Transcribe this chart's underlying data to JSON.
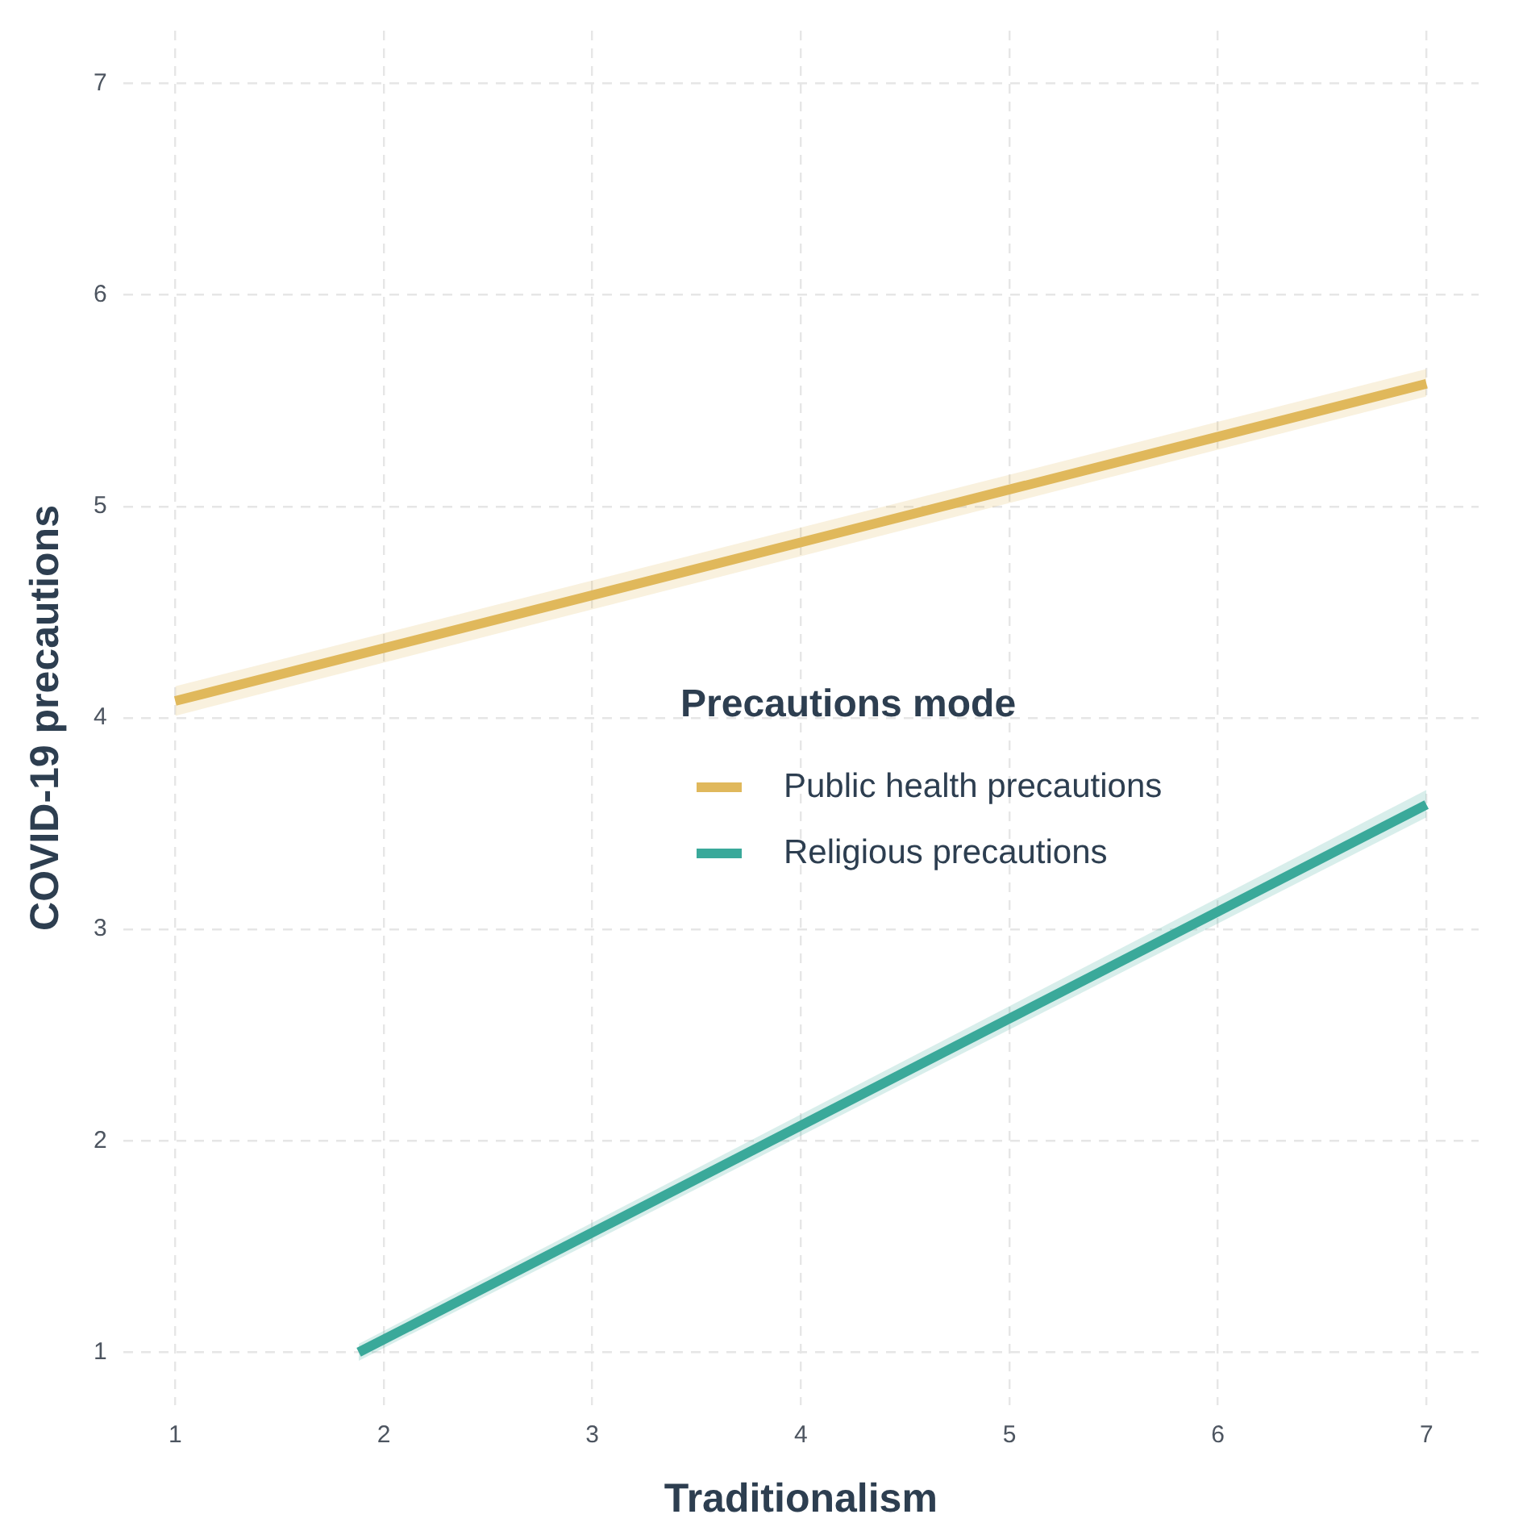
{
  "chart_data": {
    "type": "line",
    "xlabel": "Traditionalism",
    "ylabel": "COVID-19 precautions",
    "legend_title": "Precautions mode",
    "legend": "right",
    "grid": true,
    "line_style": "solid",
    "marker": "none",
    "xlim": [
      0.75,
      7.25
    ],
    "xticks": [
      1,
      2,
      3,
      4,
      5,
      6,
      7
    ],
    "ylim": [
      0.75,
      7.25
    ],
    "yticks": [
      1,
      2,
      3,
      4,
      5,
      6,
      7
    ],
    "series": [
      {
        "name": "Public health precautions",
        "color": "#e0b85c",
        "x": [
          1,
          7
        ],
        "values": [
          4.08,
          5.58
        ],
        "lower": [
          4.01,
          5.52
        ],
        "upper": [
          4.15,
          5.65
        ]
      },
      {
        "name": "Religious precautions",
        "color": "#3aa99a",
        "x": [
          1.88,
          7
        ],
        "values": [
          1.0,
          3.59
        ],
        "lower": [
          0.96,
          3.53
        ],
        "upper": [
          1.04,
          3.66
        ]
      }
    ]
  }
}
